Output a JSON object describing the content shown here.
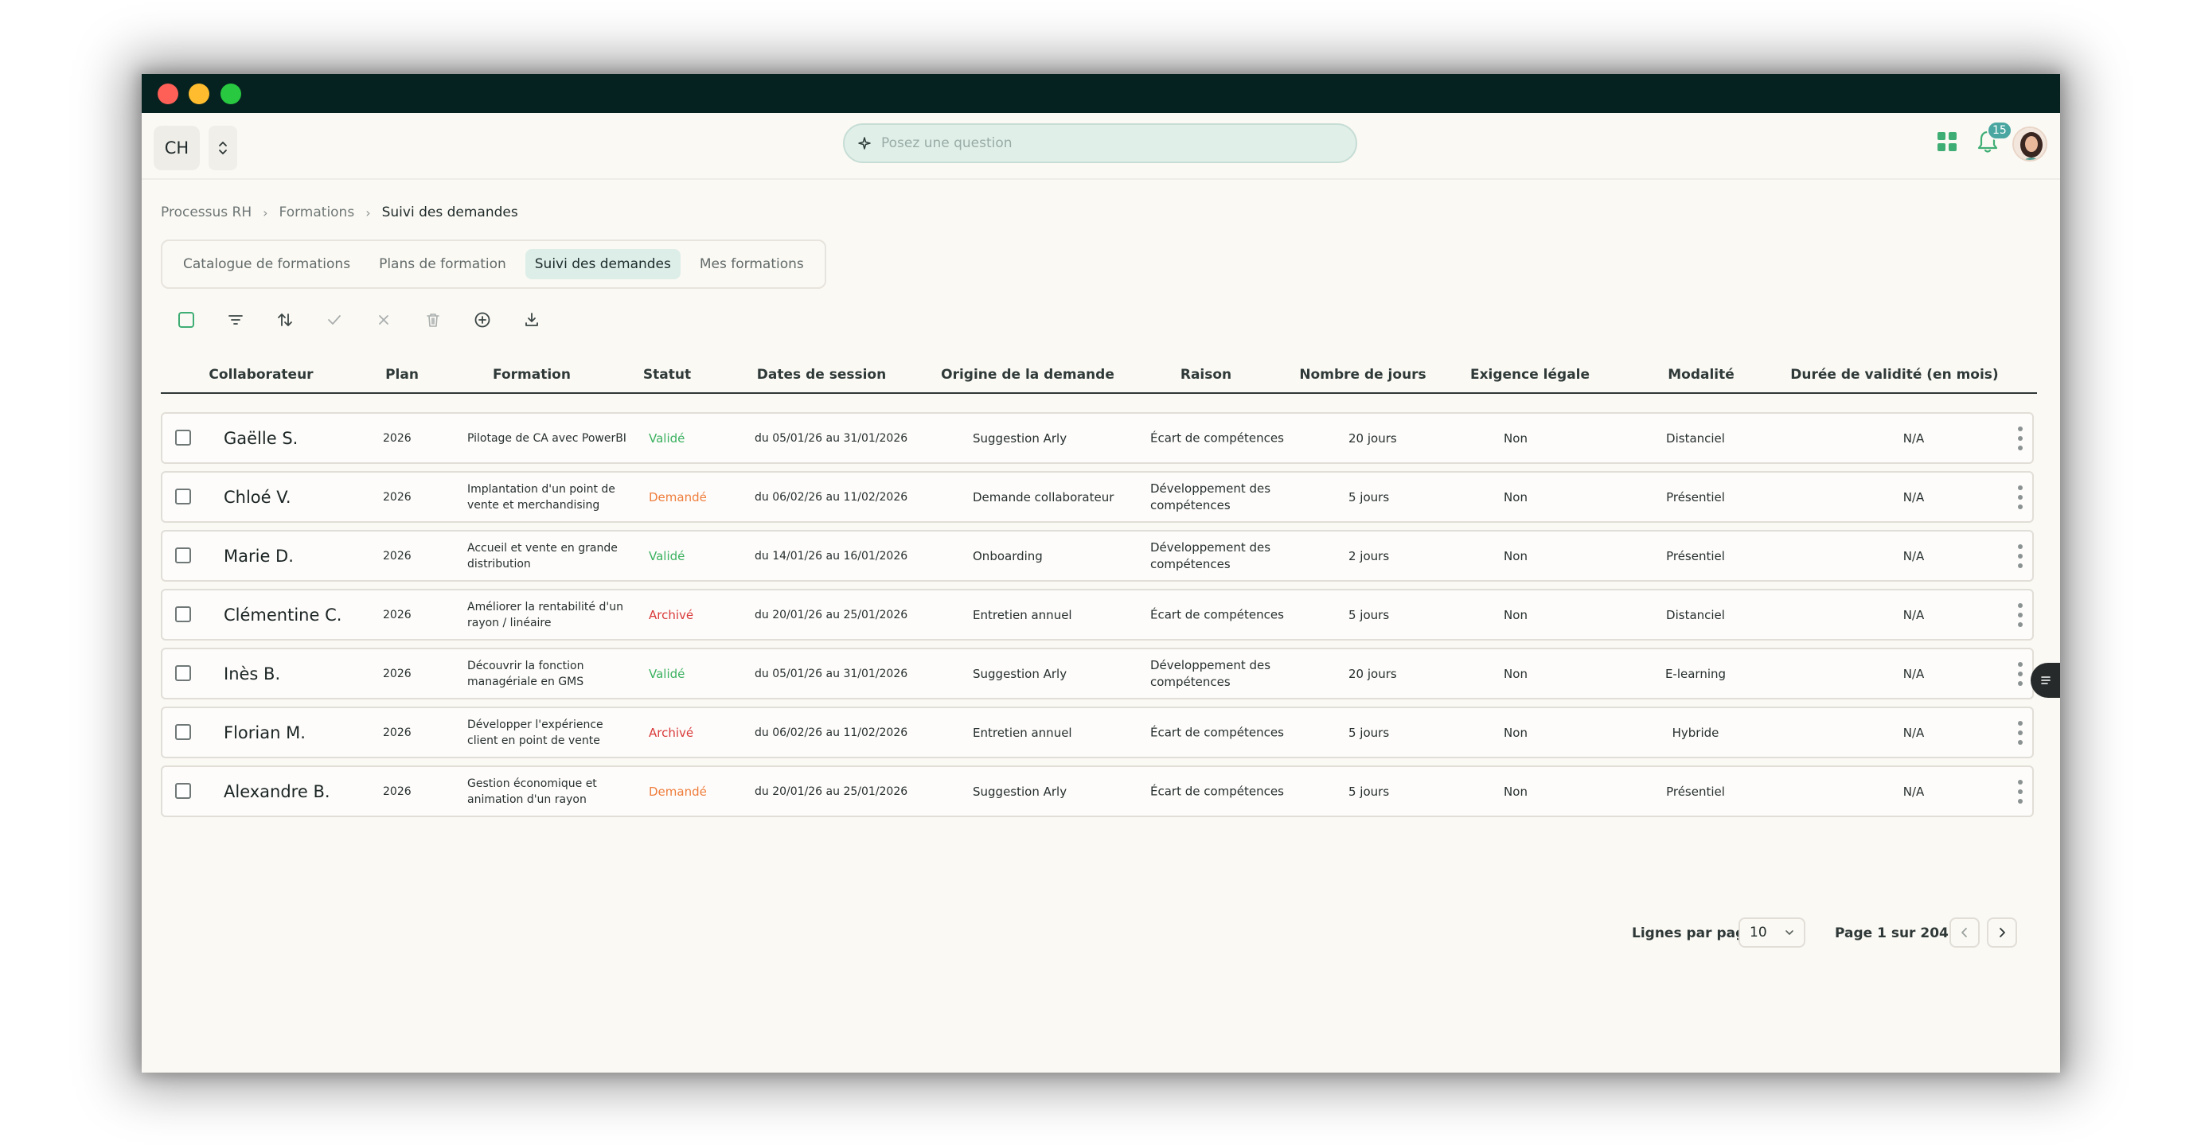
{
  "window": {
    "controls": [
      "close",
      "minimize",
      "maximize"
    ]
  },
  "appbar": {
    "workspace_initials": "CH",
    "search_placeholder": "Posez une question",
    "notification_count": "15"
  },
  "breadcrumb": [
    "Processus RH",
    "Formations",
    "Suivi des demandes"
  ],
  "tabs": [
    {
      "label": "Catalogue de formations",
      "active": false
    },
    {
      "label": "Plans de formation",
      "active": false
    },
    {
      "label": "Suivi des demandes",
      "active": true
    },
    {
      "label": "Mes formations",
      "active": false
    }
  ],
  "toolbar": [
    "select-all",
    "filter",
    "sort",
    "approve",
    "reject",
    "delete",
    "add",
    "download"
  ],
  "columns": {
    "collaborateur": "Collaborateur",
    "plan": "Plan",
    "formation": "Formation",
    "statut": "Statut",
    "dates": "Dates de session",
    "origine": "Origine de la demande",
    "raison": "Raison",
    "jours": "Nombre de jours",
    "legale": "Exigence légale",
    "modalite": "Modalité",
    "validite": "Durée de validité (en mois)"
  },
  "rows": [
    {
      "name": "Gaëlle S.",
      "plan": "2026",
      "formation": "Pilotage de CA avec PowerBI",
      "statut": "Validé",
      "dates": "du 05/01/26 au 31/01/2026",
      "origine": "Suggestion Arly",
      "raison": "Écart de compétences",
      "jours": "20 jours",
      "legale": "Non",
      "modalite": "Distanciel",
      "validite": "N/A"
    },
    {
      "name": "Chloé V.",
      "plan": "2026",
      "formation": "Implantation d'un point de vente et merchandising",
      "statut": "Demandé",
      "dates": "du 06/02/26 au 11/02/2026",
      "origine": "Demande collaborateur",
      "raison": "Développement des compétences",
      "jours": "5 jours",
      "legale": "Non",
      "modalite": "Présentiel",
      "validite": "N/A"
    },
    {
      "name": "Marie D.",
      "plan": "2026",
      "formation": "Accueil et vente en grande distribution",
      "statut": "Validé",
      "dates": "du 14/01/26 au 16/01/2026",
      "origine": "Onboarding",
      "raison": "Développement des compétences",
      "jours": "2 jours",
      "legale": "Non",
      "modalite": "Présentiel",
      "validite": "N/A"
    },
    {
      "name": "Clémentine C.",
      "plan": "2026",
      "formation": "Améliorer la rentabilité d'un rayon / linéaire",
      "statut": "Archivé",
      "dates": "du 20/01/26 au 25/01/2026",
      "origine": "Entretien annuel",
      "raison": "Écart de compétences",
      "jours": "5 jours",
      "legale": "Non",
      "modalite": "Distanciel",
      "validite": "N/A"
    },
    {
      "name": "Inès B.",
      "plan": "2026",
      "formation": "Découvrir la fonction managériale en GMS",
      "statut": "Validé",
      "dates": "du 05/01/26 au 31/01/2026",
      "origine": "Suggestion Arly",
      "raison": "Développement des compétences",
      "jours": "20 jours",
      "legale": "Non",
      "modalite": "E-learning",
      "validite": "N/A"
    },
    {
      "name": "Florian M.",
      "plan": "2026",
      "formation": "Développer l'expérience client en point de vente",
      "statut": "Archivé",
      "dates": "du 06/02/26 au 11/02/2026",
      "origine": "Entretien annuel",
      "raison": "Écart de compétences",
      "jours": "5 jours",
      "legale": "Non",
      "modalite": "Hybride",
      "validite": "N/A"
    },
    {
      "name": "Alexandre B.",
      "plan": "2026",
      "formation": "Gestion économique et animation d'un rayon",
      "statut": "Demandé",
      "dates": "du 20/01/26 au 25/01/2026",
      "origine": "Suggestion Arly",
      "raison": "Écart de compétences",
      "jours": "5 jours",
      "legale": "Non",
      "modalite": "Présentiel",
      "validite": "N/A"
    }
  ],
  "status_colors": {
    "Validé": "#3bb15f",
    "Demandé": "#ef7d3c",
    "Archivé": "#d93a3a"
  },
  "pagination": {
    "rows_per_page_label": "Lignes par page",
    "rows_per_page_value": "10",
    "page_text": "Page 1 sur 204"
  },
  "colors": {
    "titlebar": "#062220",
    "background": "#fbf9f4",
    "accent": "#4aa6a0"
  }
}
